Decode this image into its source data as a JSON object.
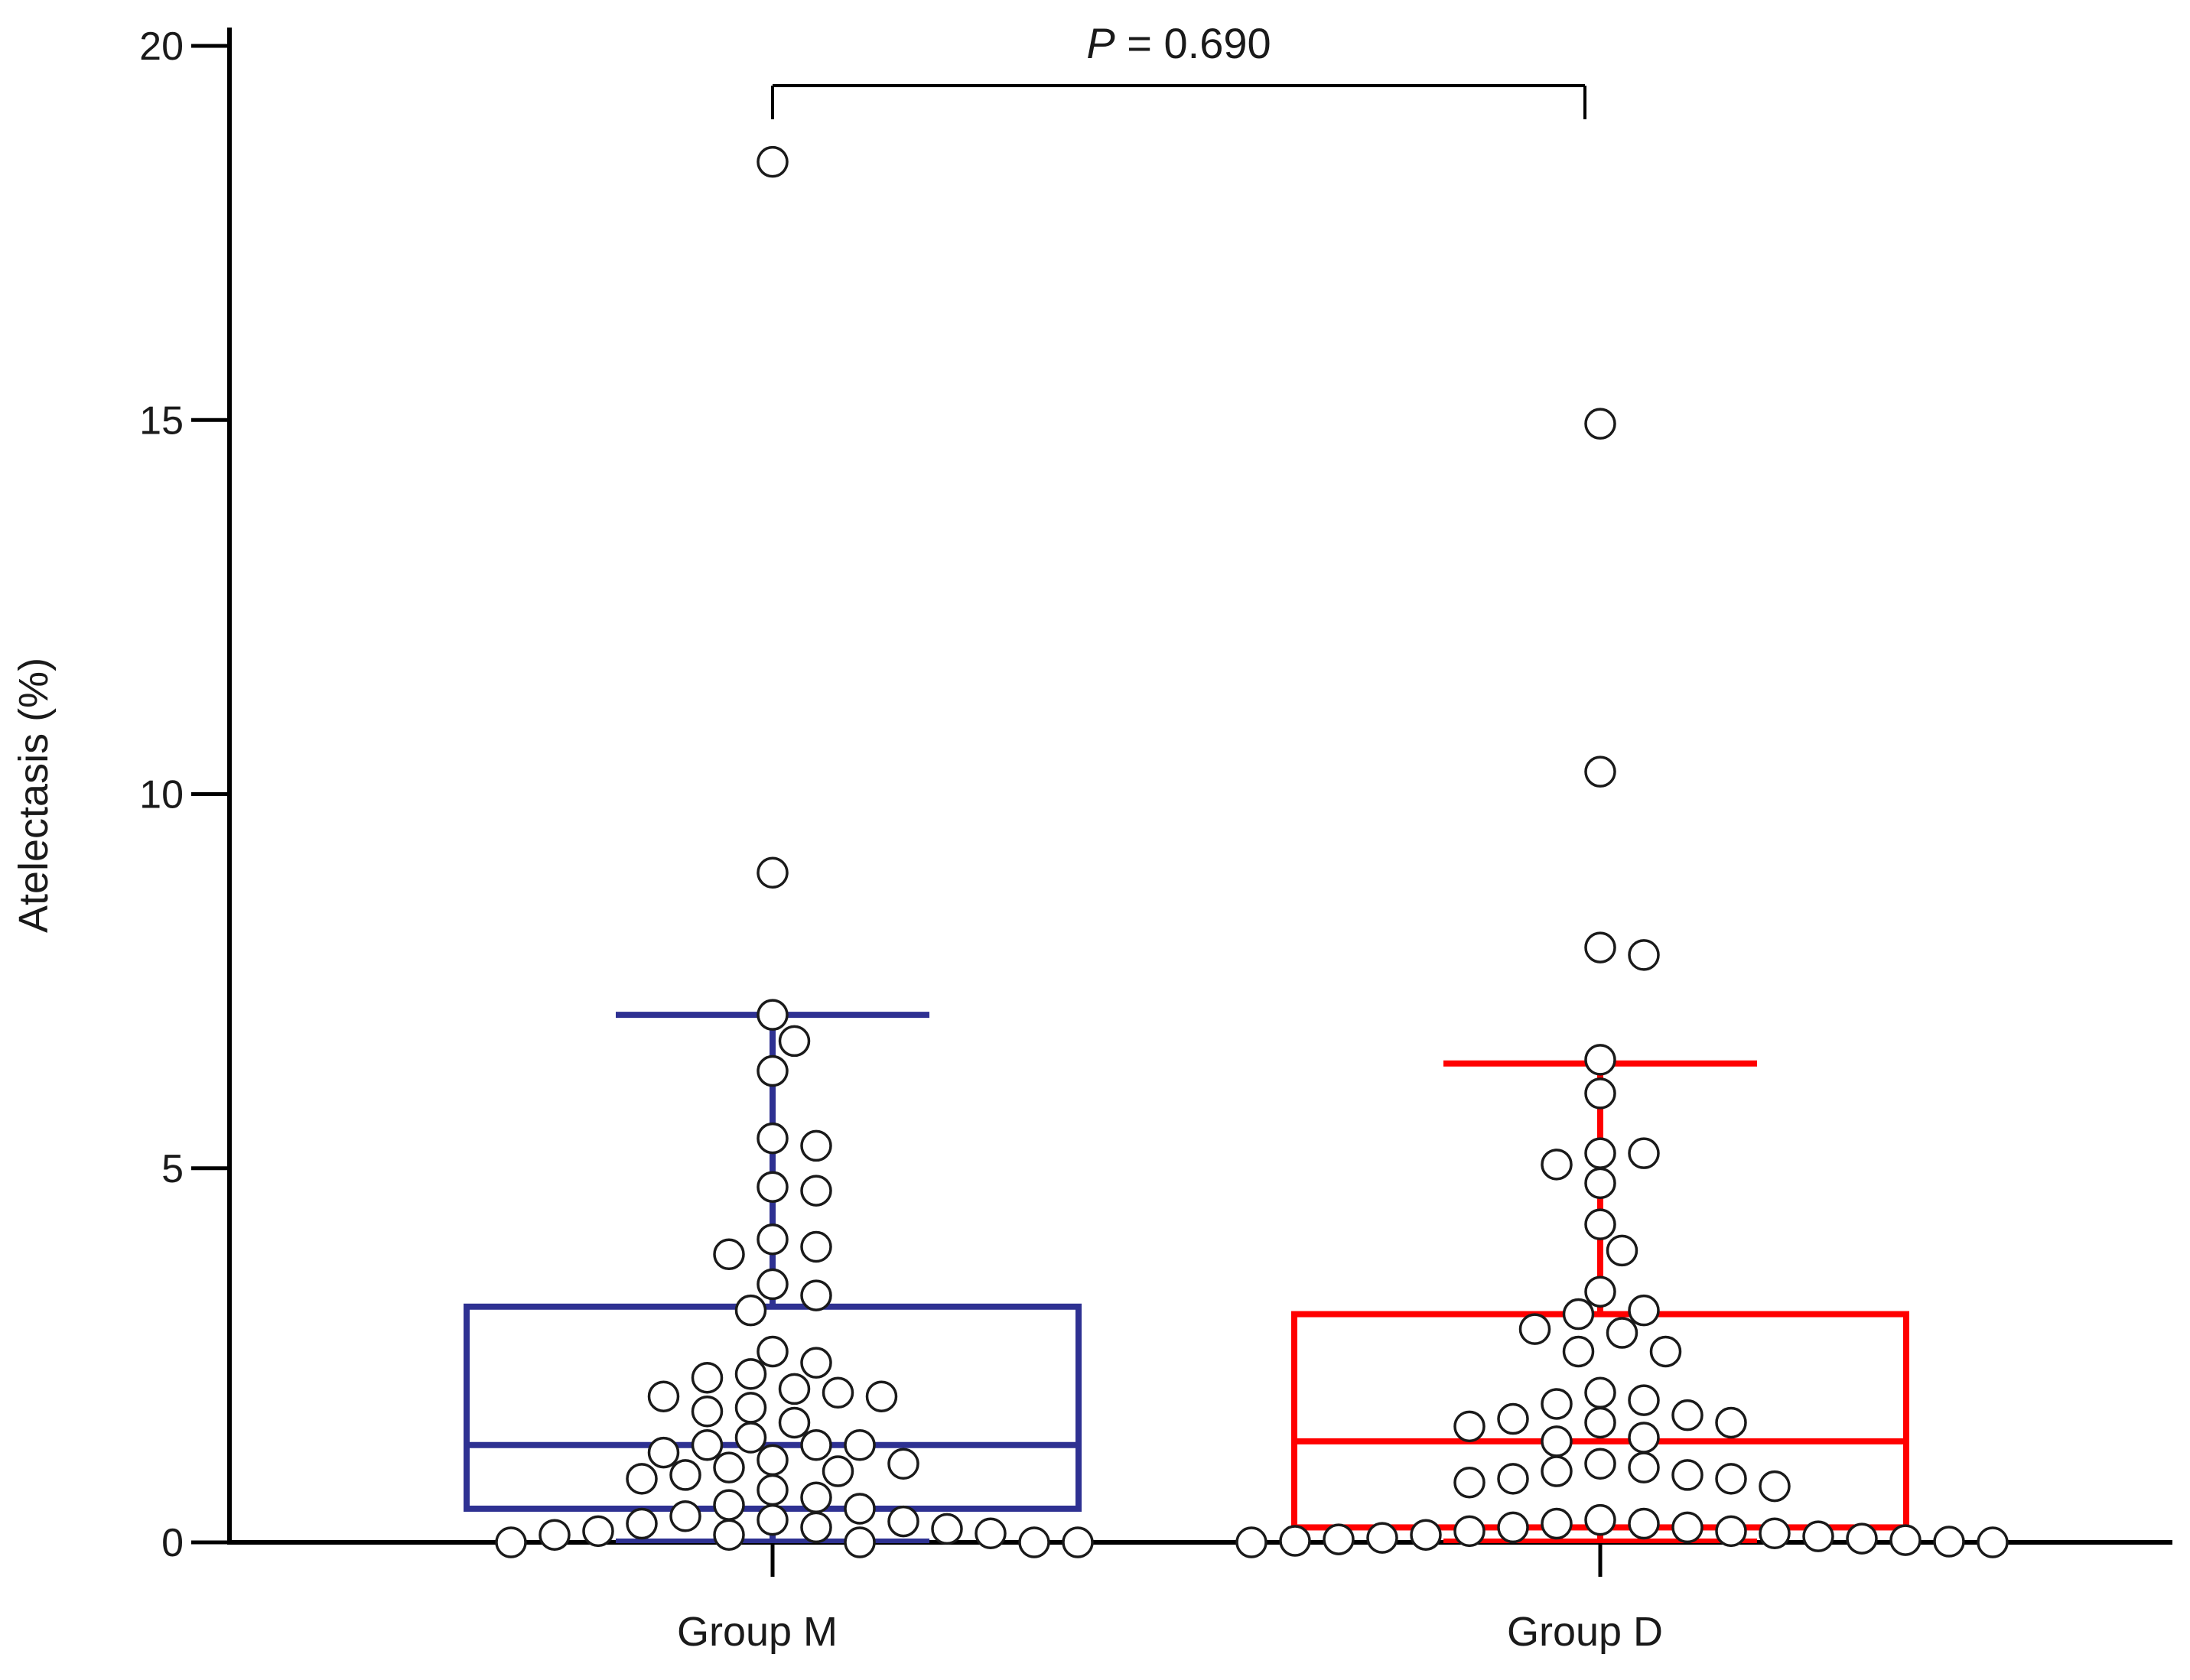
{
  "chart_data": {
    "type": "box",
    "title": "",
    "xlabel": "",
    "ylabel": "Atelectasis (%)",
    "ylim": [
      0,
      20
    ],
    "yticks": [
      "0",
      "5",
      "10",
      "15",
      "20"
    ],
    "categories": [
      "Group M",
      "Group D"
    ],
    "grid": false,
    "annotation": {
      "p_symbol": "P",
      "p_text": " = 0.690",
      "between": [
        "Group M",
        "Group D"
      ]
    },
    "series": [
      {
        "name": "Group M",
        "color": "#2E3192",
        "box": {
          "q1": 0.45,
          "median": 1.3,
          "q3": 3.15,
          "whisker_low": 0.0,
          "whisker_high": 7.05
        },
        "points": [
          18.45,
          8.95,
          7.05,
          6.7,
          6.3,
          5.4,
          5.3,
          4.75,
          4.7,
          4.05,
          3.95,
          3.85,
          3.45,
          3.3,
          3.1,
          2.55,
          2.4,
          2.25,
          2.2,
          2.05,
          2.0,
          1.95,
          1.95,
          1.8,
          1.75,
          1.6,
          1.4,
          1.3,
          1.3,
          1.3,
          1.2,
          1.1,
          1.05,
          1.0,
          0.95,
          0.9,
          0.85,
          0.7,
          0.6,
          0.5,
          0.45,
          0.35,
          0.3,
          0.28,
          0.25,
          0.2,
          0.18,
          0.15,
          0.12,
          0.1,
          0.1,
          0.0,
          0.0,
          0.0,
          0.0
        ]
      },
      {
        "name": "Group D",
        "color": "#FF0000",
        "box": {
          "q1": 0.2,
          "median": 1.35,
          "q3": 3.05,
          "whisker_low": 0.0,
          "whisker_high": 6.4
        },
        "points": [
          14.95,
          10.3,
          7.95,
          7.85,
          6.45,
          6.0,
          5.2,
          5.2,
          5.05,
          4.8,
          4.25,
          3.9,
          3.35,
          3.1,
          3.05,
          2.85,
          2.8,
          2.55,
          2.55,
          2.0,
          1.9,
          1.85,
          1.7,
          1.65,
          1.6,
          1.6,
          1.55,
          1.4,
          1.35,
          1.05,
          1.0,
          0.95,
          0.9,
          0.85,
          0.85,
          0.8,
          0.75,
          0.3,
          0.25,
          0.25,
          0.2,
          0.2,
          0.15,
          0.15,
          0.12,
          0.1,
          0.08,
          0.06,
          0.05,
          0.04,
          0.03,
          0.02,
          0.01,
          0.0,
          0.0
        ]
      }
    ]
  }
}
